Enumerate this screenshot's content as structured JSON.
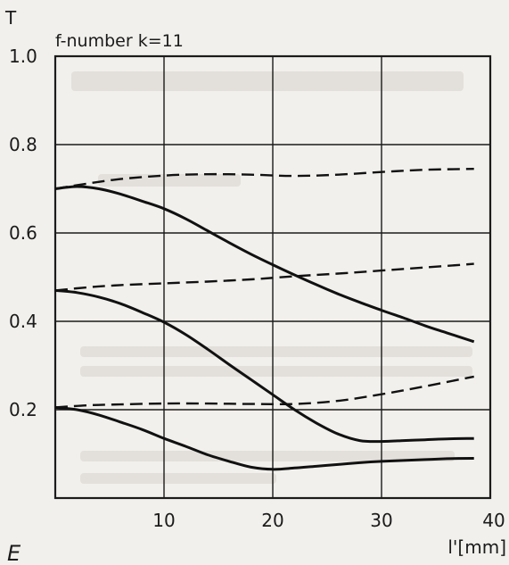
{
  "chart_data": {
    "type": "line",
    "title": "",
    "subtitle": "f-number k=11",
    "xlabel": "l'[mm]",
    "ylabel": "T",
    "xlim": [
      0,
      40
    ],
    "ylim": [
      0,
      1.0
    ],
    "x_ticks": [
      10,
      20,
      30,
      40
    ],
    "x_tick_labels": [
      "10",
      "20",
      "30",
      "40"
    ],
    "y_ticks": [
      0.2,
      0.4,
      0.6,
      0.8,
      1.0
    ],
    "y_tick_labels": [
      "0.2",
      "0.4",
      "0.6",
      "0.8",
      "1.0"
    ],
    "grid": true,
    "series": [
      {
        "style": "solid",
        "x": [
          0,
          2,
          4,
          6,
          8,
          10,
          12,
          14,
          16,
          18,
          20,
          22,
          24,
          26,
          28,
          30,
          32,
          34,
          36,
          38.5
        ],
        "y": [
          0.7,
          0.705,
          0.7,
          0.688,
          0.672,
          0.655,
          0.632,
          0.605,
          0.578,
          0.552,
          0.528,
          0.505,
          0.483,
          0.462,
          0.443,
          0.425,
          0.408,
          0.39,
          0.374,
          0.354
        ]
      },
      {
        "style": "solid",
        "x": [
          0,
          2,
          4,
          6,
          8,
          10,
          12,
          14,
          16,
          18,
          20,
          22,
          24,
          26,
          28,
          30,
          32,
          34,
          36,
          38.5
        ],
        "y": [
          0.47,
          0.465,
          0.455,
          0.44,
          0.42,
          0.398,
          0.37,
          0.337,
          0.302,
          0.268,
          0.234,
          0.2,
          0.17,
          0.145,
          0.13,
          0.128,
          0.13,
          0.132,
          0.134,
          0.135
        ]
      },
      {
        "style": "solid",
        "x": [
          0,
          2,
          4,
          6,
          8,
          10,
          12,
          14,
          16,
          18,
          20,
          22,
          24,
          26,
          28,
          30,
          32,
          34,
          36,
          38.5
        ],
        "y": [
          0.205,
          0.2,
          0.188,
          0.172,
          0.155,
          0.135,
          0.117,
          0.098,
          0.083,
          0.07,
          0.065,
          0.068,
          0.072,
          0.076,
          0.08,
          0.083,
          0.085,
          0.087,
          0.089,
          0.09
        ]
      },
      {
        "style": "dashed",
        "x": [
          0,
          3,
          6,
          10,
          14,
          18,
          22,
          26,
          30,
          34,
          38.5
        ],
        "y": [
          0.7,
          0.712,
          0.722,
          0.73,
          0.733,
          0.732,
          0.729,
          0.732,
          0.738,
          0.743,
          0.745
        ]
      },
      {
        "style": "dashed",
        "x": [
          0,
          3,
          6,
          10,
          14,
          18,
          22,
          26,
          30,
          34,
          38.5
        ],
        "y": [
          0.47,
          0.477,
          0.482,
          0.486,
          0.49,
          0.495,
          0.502,
          0.508,
          0.515,
          0.522,
          0.53
        ]
      },
      {
        "style": "dashed",
        "x": [
          0,
          3,
          6,
          10,
          14,
          18,
          22,
          26,
          30,
          34,
          38.5
        ],
        "y": [
          0.205,
          0.21,
          0.212,
          0.214,
          0.214,
          0.213,
          0.213,
          0.22,
          0.235,
          0.253,
          0.275
        ]
      }
    ],
    "caption_fragment": "E"
  }
}
